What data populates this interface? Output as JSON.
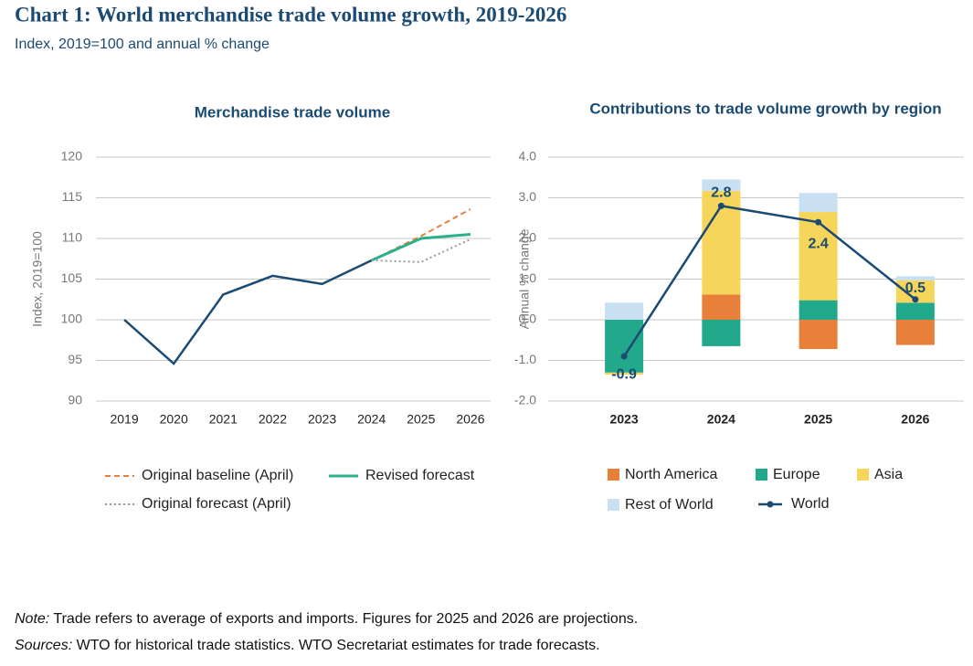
{
  "title": "Chart 1: World merchandise trade volume growth, 2019-2026",
  "subtitle": "Index, 2019=100 and annual % change",
  "note": {
    "label": "Note:",
    "text": "Trade refers to average of exports and imports. Figures for 2025 and 2026 are projections."
  },
  "sources": {
    "label": "Sources:",
    "text": "WTO for historical trade statistics. WTO Secretariat estimates for trade forecasts."
  },
  "chart_data": [
    {
      "type": "line",
      "title": "Merchandise trade volume",
      "y_label": "Index, 2019=100",
      "categories": [
        "2019",
        "2020",
        "2021",
        "2022",
        "2023",
        "2024",
        "2025",
        "2026"
      ],
      "ylim": [
        90,
        120
      ],
      "yticks": [
        90,
        95,
        100,
        105,
        110,
        115,
        120
      ],
      "grid": true,
      "series": [
        {
          "color": "#1b4a72",
          "line_style": "solid",
          "values": [
            100,
            94.6,
            103.1,
            105.4,
            104.4,
            107.3,
            null,
            null
          ]
        },
        {
          "name": "Original baseline (April)",
          "color": "#e8803a",
          "line_style": "dashed",
          "values": [
            null,
            null,
            null,
            null,
            null,
            107.3,
            110.3,
            113.6
          ]
        },
        {
          "name": "Revised forecast",
          "color": "#2bb08c",
          "line_style": "solid",
          "values": [
            null,
            null,
            null,
            null,
            null,
            107.3,
            110.0,
            110.5
          ]
        },
        {
          "name": "Original forecast (April)",
          "color": "#999999",
          "line_style": "dotted",
          "values": [
            null,
            null,
            null,
            null,
            null,
            107.3,
            107.1,
            109.9
          ]
        }
      ]
    },
    {
      "type": "bar",
      "stacked": true,
      "title": "Contributions to trade volume growth by region",
      "y_label": "Annual % change",
      "categories": [
        "2023",
        "2024",
        "2025",
        "2026"
      ],
      "ylim": [
        -2,
        4
      ],
      "yticks": [
        {
          "value": -2,
          "label": "-2.0"
        },
        {
          "value": -1,
          "label": "-1.0"
        },
        {
          "value": 0,
          "label": "0.0"
        },
        {
          "value": 1,
          "label": "1.0"
        },
        {
          "value": 2,
          "label": "2.0"
        },
        {
          "value": 3,
          "label": "3.0"
        },
        {
          "value": 4,
          "label": "4.0"
        }
      ],
      "grid": true,
      "series": [
        {
          "name": "North America",
          "color": "#e8803a",
          "values": [
            0,
            0.62,
            -0.72,
            -0.62
          ]
        },
        {
          "name": "Europe",
          "color": "#22a98b",
          "values": [
            -1.3,
            -0.65,
            0.48,
            0.42
          ]
        },
        {
          "name": "Asia",
          "color": "#f5d55a",
          "values": [
            -0.05,
            2.55,
            2.17,
            0.55
          ]
        },
        {
          "name": "Rest of World",
          "color": "#c9dff2",
          "values": [
            0.42,
            0.28,
            0.47,
            0.1
          ]
        },
        {
          "name": "World",
          "type": "line",
          "color": "#1b4a72",
          "values": [
            -0.9,
            2.8,
            2.4,
            0.5
          ]
        }
      ]
    }
  ]
}
